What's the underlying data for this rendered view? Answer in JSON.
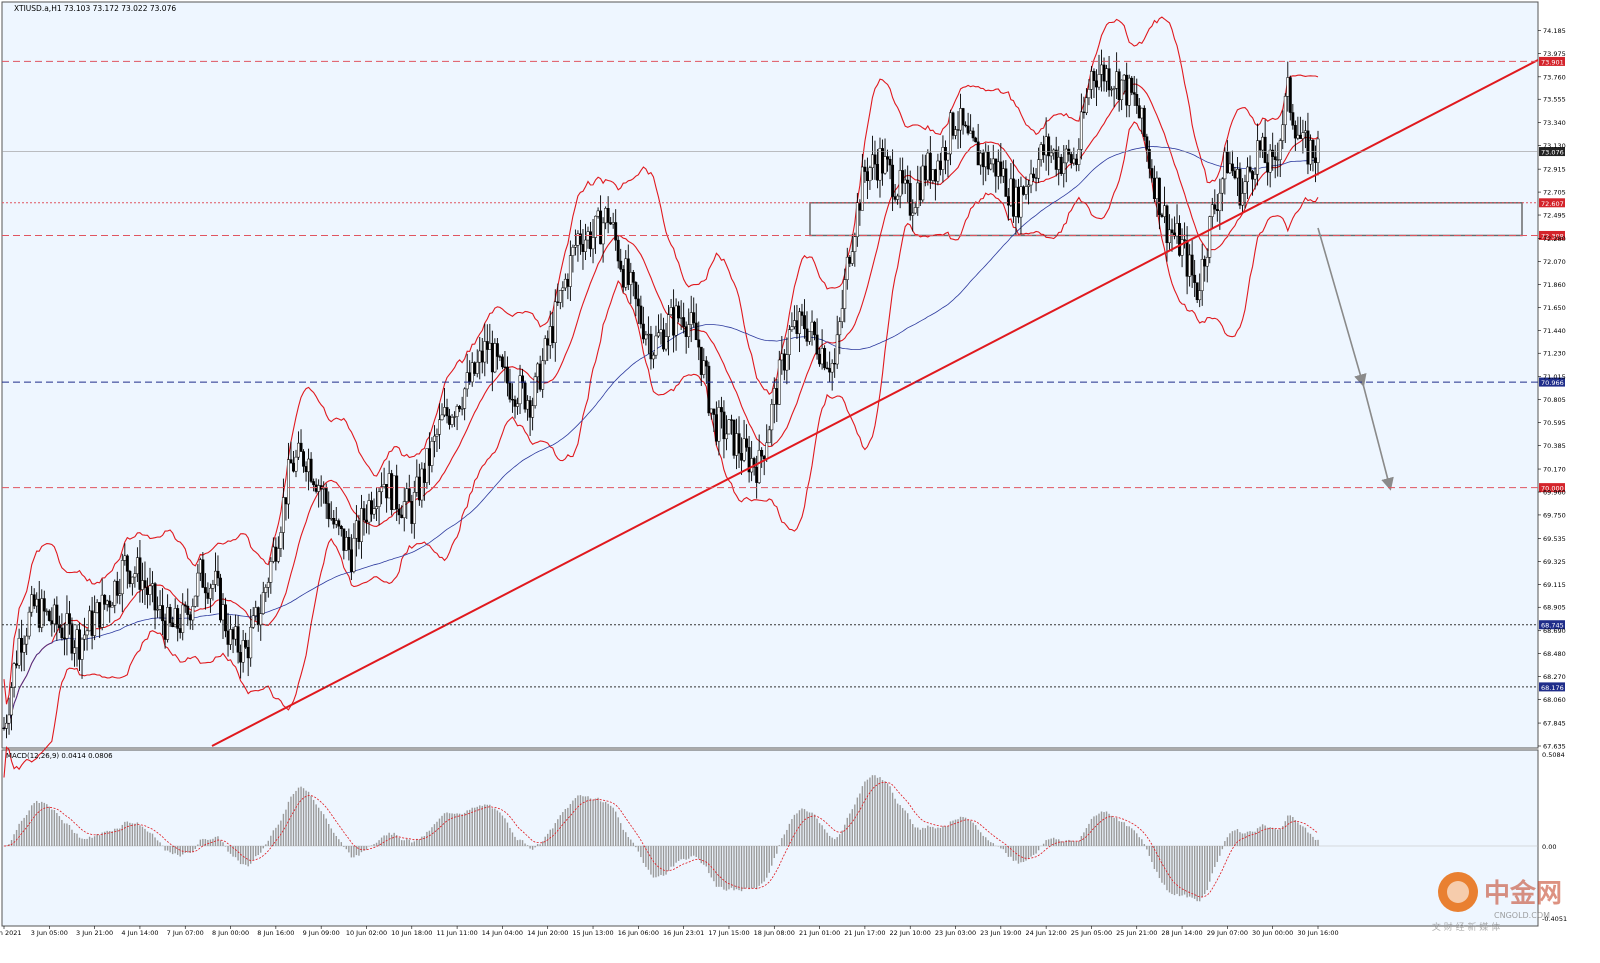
{
  "header": {
    "symbol_line": "XTIUSD.a,H1  73.103 73.172 73.022 73.076"
  },
  "macd": {
    "label": "MACD(12,26,9) 0.0414 0.0806",
    "axis_labels": [
      "0.5084",
      "0.00",
      "-0.4051"
    ]
  },
  "watermark": {
    "brand": "中金网",
    "domain": "CNGOLD.COM",
    "tagline": "中 文 财 经 新 媒 体"
  },
  "colors": {
    "background": "#eef6ff",
    "candle": "#000000",
    "bollinger": "#e0191e",
    "ma": "#2d3a9e",
    "trendline": "#e0191e",
    "support_line": "#e05560",
    "blue_level": "#1f2d8a",
    "projection_arrow": "#8a8a8a",
    "macd_hist": "#9a9a9a",
    "macd_signal": "#e0191e"
  },
  "chart_data": {
    "type": "candlestick",
    "symbol": "XTIUSD.a",
    "timeframe": "H1",
    "ohlc_last": {
      "open": 73.103,
      "high": 73.172,
      "low": 73.022,
      "close": 73.076
    },
    "ylim": [
      67.635,
      74.39
    ],
    "y_ticks": [
      "74.185",
      "73.975",
      "73.760",
      "73.555",
      "73.340",
      "73.130",
      "72.915",
      "72.705",
      "72.495",
      "72.280",
      "72.070",
      "71.860",
      "71.650",
      "71.440",
      "71.230",
      "71.015",
      "70.805",
      "70.595",
      "70.385",
      "70.170",
      "69.960",
      "69.750",
      "69.535",
      "69.325",
      "69.115",
      "68.905",
      "68.690",
      "68.480",
      "68.270",
      "68.060",
      "67.845",
      "67.635"
    ],
    "x_ticks": [
      "2 Jun 2021",
      "3 Jun 05:00",
      "3 Jun 21:00",
      "4 Jun 14:00",
      "7 Jun 07:00",
      "8 Jun 00:00",
      "8 Jun 16:00",
      "9 Jun 09:00",
      "10 Jun 02:00",
      "10 Jun 18:00",
      "11 Jun 11:00",
      "14 Jun 04:00",
      "14 Jun 20:00",
      "15 Jun 13:00",
      "16 Jun 06:00",
      "16 Jun 23:01",
      "17 Jun 15:00",
      "18 Jun 08:00",
      "21 Jun 01:00",
      "21 Jun 17:00",
      "22 Jun 10:00",
      "23 Jun 03:00",
      "23 Jun 19:00",
      "24 Jun 12:00",
      "25 Jun 05:00",
      "25 Jun 21:00",
      "28 Jun 14:00",
      "29 Jun 07:00",
      "30 Jun 00:00",
      "30 Jun 16:00"
    ],
    "close_path": [
      [
        0,
        67.8
      ],
      [
        1,
        68.6
      ],
      [
        2,
        68.9
      ],
      [
        3,
        68.8
      ],
      [
        4,
        68.7
      ],
      [
        5,
        68.6
      ],
      [
        6,
        68.8
      ],
      [
        7,
        69.0
      ],
      [
        8,
        69.3
      ],
      [
        9,
        69.2
      ],
      [
        10,
        68.9
      ],
      [
        11,
        68.7
      ],
      [
        12,
        68.8
      ],
      [
        13,
        69.2
      ],
      [
        14,
        69.1
      ],
      [
        15,
        68.6
      ],
      [
        16,
        68.5
      ],
      [
        17,
        68.9
      ],
      [
        18,
        69.5
      ],
      [
        19,
        70.2
      ],
      [
        20,
        70.3
      ],
      [
        21,
        70.0
      ],
      [
        22,
        69.6
      ],
      [
        23,
        69.4
      ],
      [
        24,
        69.8
      ],
      [
        25,
        70.1
      ],
      [
        26,
        69.9
      ],
      [
        27,
        69.8
      ],
      [
        28,
        70.2
      ],
      [
        29,
        70.6
      ],
      [
        30,
        70.8
      ],
      [
        31,
        71.0
      ],
      [
        32,
        71.3
      ],
      [
        33,
        71.0
      ],
      [
        34,
        70.9
      ],
      [
        35,
        70.8
      ],
      [
        36,
        71.3
      ],
      [
        37,
        71.8
      ],
      [
        38,
        72.3
      ],
      [
        39,
        72.3
      ],
      [
        40,
        72.5
      ],
      [
        41,
        72.0
      ],
      [
        42,
        71.6
      ],
      [
        43,
        71.3
      ],
      [
        44,
        71.5
      ],
      [
        45,
        71.6
      ],
      [
        46,
        71.3
      ],
      [
        47,
        70.6
      ],
      [
        48,
        70.5
      ],
      [
        49,
        70.3
      ],
      [
        50,
        70.2
      ],
      [
        51,
        70.8
      ],
      [
        52,
        71.4
      ],
      [
        53,
        71.5
      ],
      [
        54,
        71.3
      ],
      [
        55,
        71.1
      ],
      [
        56,
        72.2
      ],
      [
        57,
        72.9
      ],
      [
        58,
        73.0
      ],
      [
        59,
        72.8
      ],
      [
        60,
        72.6
      ],
      [
        61,
        72.9
      ],
      [
        62,
        73.0
      ],
      [
        63,
        73.4
      ],
      [
        64,
        73.1
      ],
      [
        65,
        73.0
      ],
      [
        66,
        72.9
      ],
      [
        67,
        72.6
      ],
      [
        68,
        72.9
      ],
      [
        69,
        73.1
      ],
      [
        70,
        73.0
      ],
      [
        71,
        73.0
      ],
      [
        72,
        73.8
      ],
      [
        73,
        73.8
      ],
      [
        74,
        73.7
      ],
      [
        75,
        73.5
      ],
      [
        76,
        72.9
      ],
      [
        77,
        72.4
      ],
      [
        78,
        72.2
      ],
      [
        79,
        71.8
      ],
      [
        80,
        72.5
      ],
      [
        81,
        73.0
      ],
      [
        82,
        72.7
      ],
      [
        83,
        73.1
      ],
      [
        84,
        72.9
      ],
      [
        85,
        73.6
      ],
      [
        86,
        73.1
      ],
      [
        87,
        73.076
      ]
    ],
    "horizontal_levels": [
      {
        "value": 73.901,
        "label": "73.901",
        "style": "dashed",
        "color": "#e05560"
      },
      {
        "value": 73.076,
        "label": "73.076",
        "style": "solid",
        "color": "#9a9a9a"
      },
      {
        "value": 72.607,
        "label": "72.607",
        "style": "dotted",
        "color": "#e05560"
      },
      {
        "value": 72.308,
        "label": "72.308",
        "style": "dashed",
        "color": "#e05560"
      },
      {
        "value": 70.966,
        "label": "70.966",
        "style": "dashed",
        "color": "#1f2d8a"
      },
      {
        "value": 70.0,
        "label": "70.000",
        "style": "dashed",
        "color": "#e05560"
      },
      {
        "value": 68.745,
        "label": "68.745",
        "style": "dotted",
        "color": "#333333"
      },
      {
        "value": 68.176,
        "label": "68.176",
        "style": "dotted",
        "color": "#333333"
      }
    ],
    "zone": {
      "low": 72.308,
      "high": 72.607
    },
    "projection_target": 70.0,
    "macd": {
      "fast": 12,
      "slow": 26,
      "signal": 9,
      "main": 0.0414,
      "signal_value": 0.0806,
      "ylim": [
        -0.4051,
        0.5084
      ]
    },
    "grid": false
  }
}
